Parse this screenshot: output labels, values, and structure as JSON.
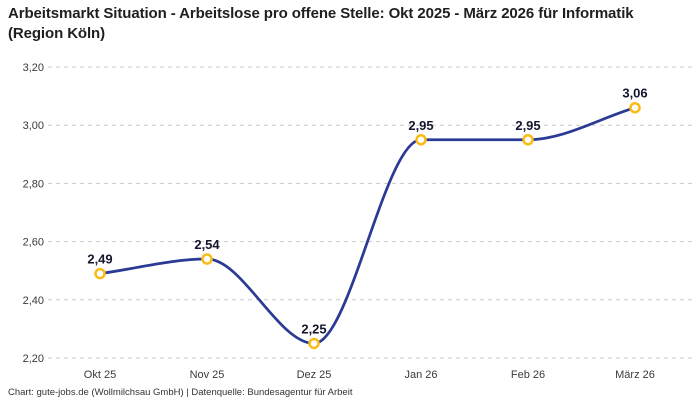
{
  "page": {
    "title": "Arbeitsmarkt Situation - Arbeitslose pro offene Stelle: Okt 2025 - März 2026 für Informatik (Region Köln)",
    "credit": "Chart: gute-jobs.de (Wollmilchsau GmbH) | Datenquelle: Bundesagentur für Arbeit"
  },
  "chart_data": {
    "type": "line",
    "title": "Arbeitsmarkt Situation - Arbeitslose pro offene Stelle: Okt 2025 - März 2026 für Informatik (Region Köln)",
    "xlabel": "",
    "ylabel": "",
    "categories": [
      "Okt 25",
      "Nov 25",
      "Dez 25",
      "Jan 26",
      "Feb 26",
      "März 26"
    ],
    "values": [
      2.49,
      2.54,
      2.25,
      2.95,
      2.95,
      3.06
    ],
    "point_labels": [
      "2,49",
      "2,54",
      "2,25",
      "2,95",
      "2,95",
      "3,06"
    ],
    "ylim": [
      2.2,
      3.2
    ],
    "yticks": {
      "values": [
        2.2,
        2.4,
        2.6,
        2.8,
        3.0,
        3.2
      ],
      "labels": [
        "2,20",
        "2,40",
        "2,60",
        "2,80",
        "3,00",
        "3,20"
      ]
    },
    "grid": "horizontal-dashed",
    "legend": "none",
    "curve": "monotone",
    "colors": {
      "line": "#2b3a94",
      "marker_ring": "#f9bb16",
      "marker_fill": "#ffffff",
      "grid": "#c9c9c9",
      "tick_text": "#3a3a3a",
      "point_label": "#15152e",
      "title": "#1f1f1f",
      "credit": "#333333",
      "background": "#ffffff"
    }
  }
}
